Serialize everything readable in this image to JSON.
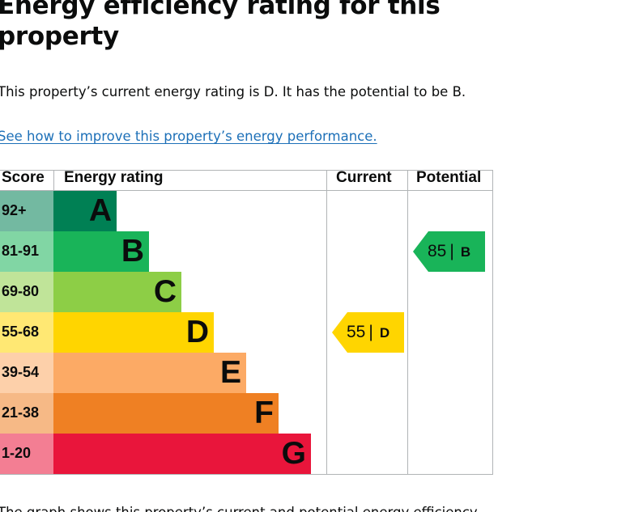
{
  "heading": "Energy efficiency rating for this property",
  "summary": "This property’s current energy rating is D. It has the potential to be B.",
  "improve_link": "See how to improve this property’s energy performance.",
  "chart_data": {
    "type": "bar",
    "columns": {
      "score": "Score",
      "rating": "Energy rating",
      "current": "Current",
      "potential": "Potential"
    },
    "bands": [
      {
        "letter": "A",
        "score": "92+",
        "color": "#008054"
      },
      {
        "letter": "B",
        "score": "81-91",
        "color": "#19b459"
      },
      {
        "letter": "C",
        "score": "69-80",
        "color": "#8dce46"
      },
      {
        "letter": "D",
        "score": "55-68",
        "color": "#ffd500"
      },
      {
        "letter": "E",
        "score": "39-54",
        "color": "#fcaa65"
      },
      {
        "letter": "F",
        "score": "21-38",
        "color": "#ef8023"
      },
      {
        "letter": "G",
        "score": "1-20",
        "color": "#e9153b"
      }
    ],
    "current": {
      "value": "55",
      "letter": "D",
      "separator": "|",
      "color": "#ffd500"
    },
    "potential": {
      "value": "85",
      "letter": "B",
      "separator": "|",
      "color": "#19b459"
    }
  },
  "caption": "The graph shows this property’s current and potential energy efficiency."
}
